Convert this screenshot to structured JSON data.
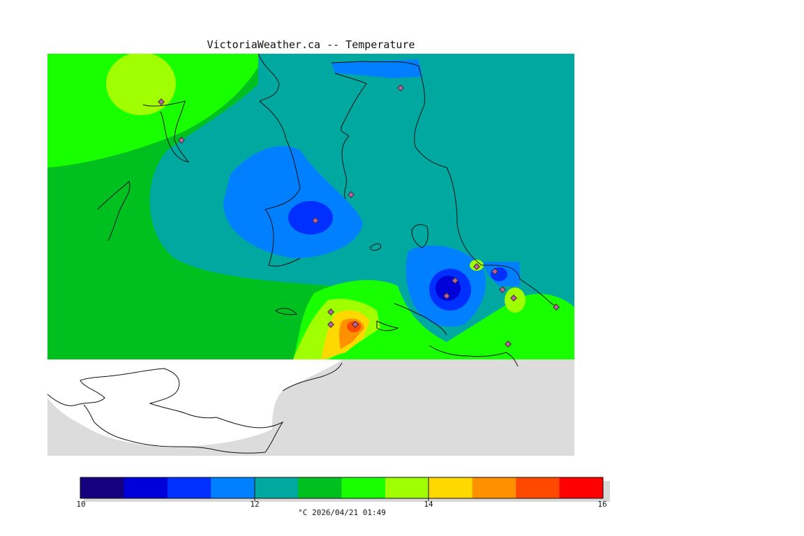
{
  "title": "VictoriaWeather.ca -- Temperature",
  "caption": "°C  2026/04/21 01:49",
  "colors": {
    "land": "#dcdcdc",
    "water": "#ffffff",
    "scale": [
      "#150080",
      "#0000d8",
      "#0030ff",
      "#0080ff",
      "#00a8a0",
      "#00c020",
      "#18ff00",
      "#a0ff00",
      "#ffd800",
      "#ff9000",
      "#ff4800",
      "#ff0000"
    ]
  },
  "legend": {
    "ticks": [
      "10",
      "12",
      "14",
      "16"
    ],
    "min": 10,
    "max": 16
  },
  "stations_count_label": "",
  "icons": [
    "station-marker-icon"
  ]
}
